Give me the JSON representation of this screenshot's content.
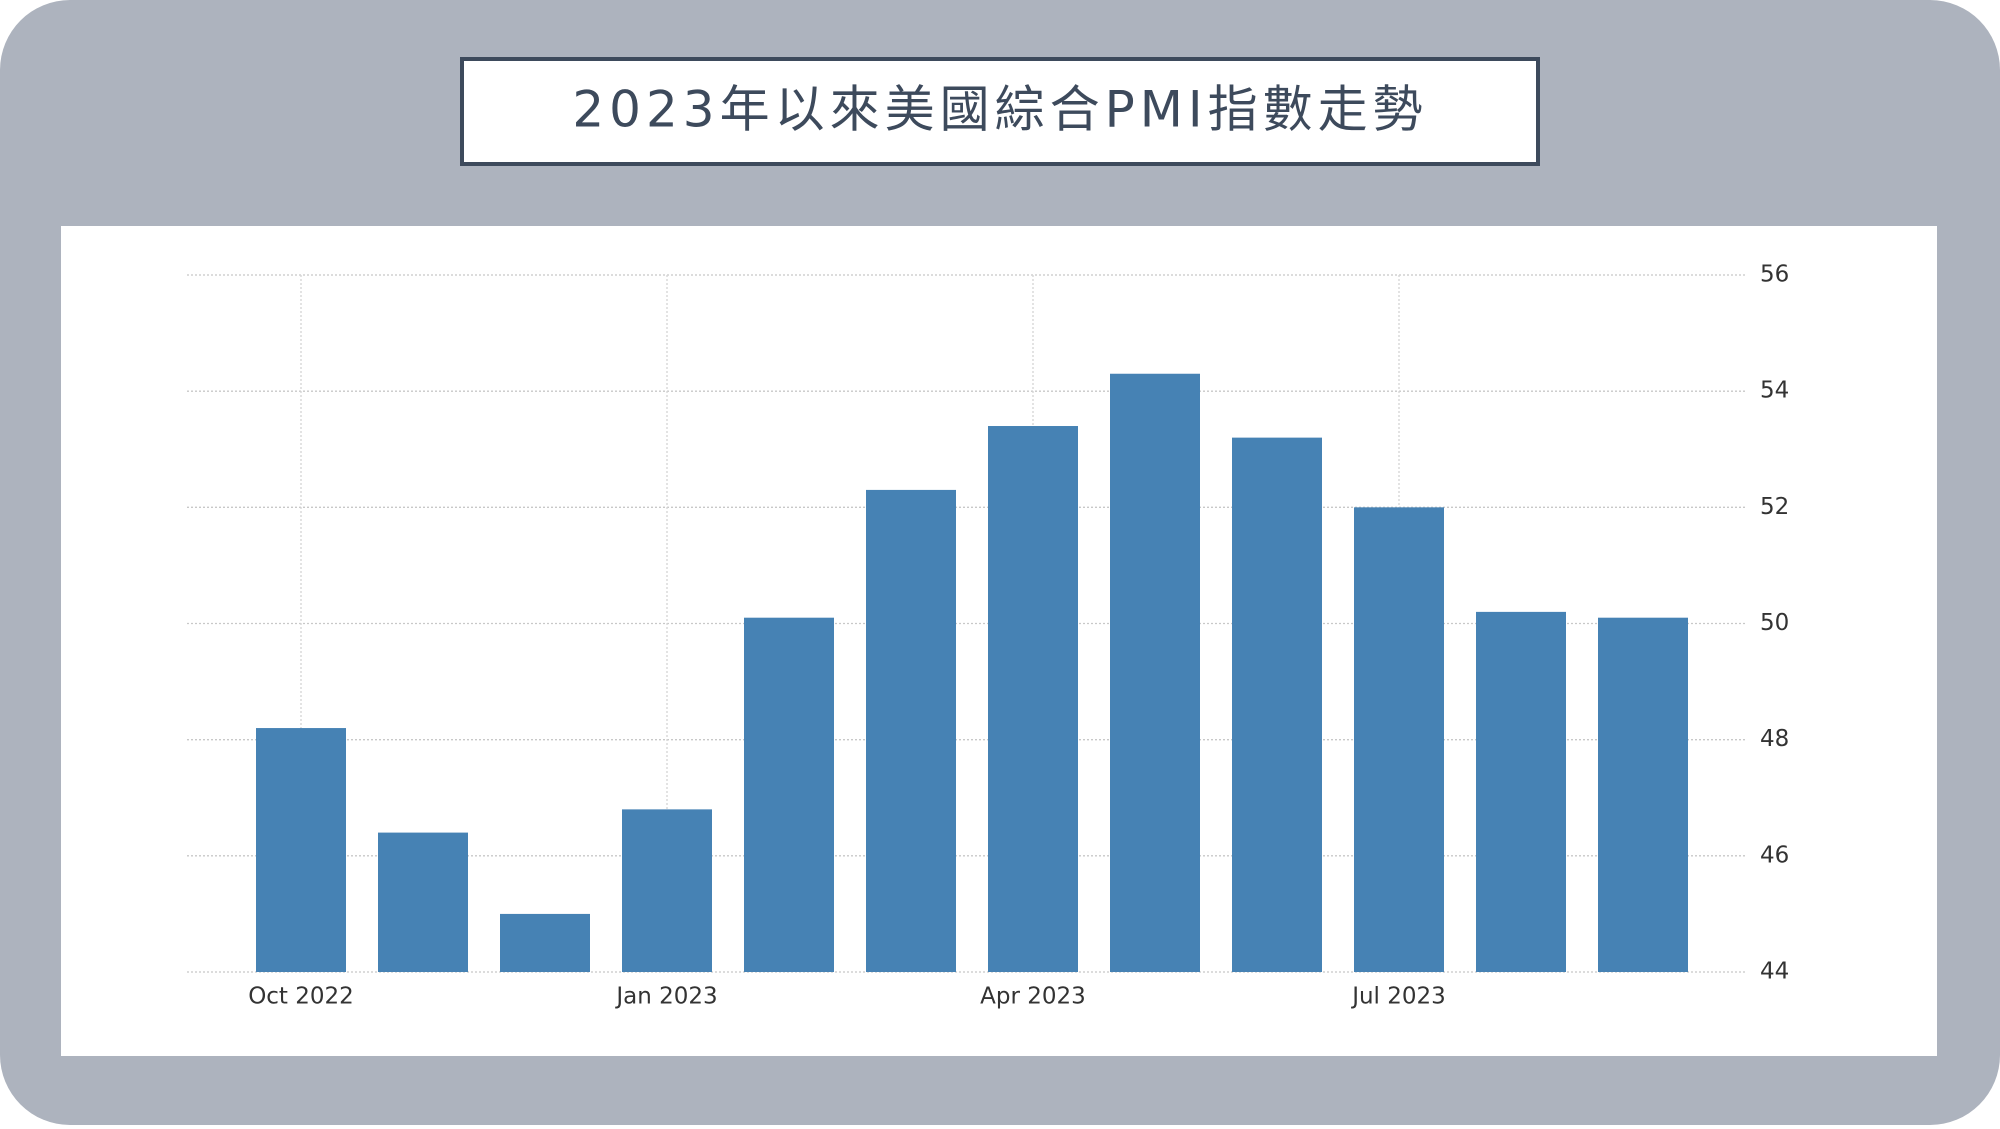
{
  "chart_data": {
    "type": "bar",
    "title": "2023年以來美國綜合PMI指數走勢",
    "categories": [
      "Oct 2022",
      null,
      null,
      "Jan 2023",
      null,
      null,
      "Apr 2023",
      null,
      null,
      "Jul 2023",
      null,
      null
    ],
    "values": [
      48.2,
      46.4,
      45.0,
      46.8,
      50.1,
      52.3,
      53.4,
      54.3,
      53.2,
      52.0,
      50.2,
      50.1
    ],
    "color": "#4682b4",
    "ylim": [
      44,
      56
    ],
    "yticks": [
      44,
      46,
      48,
      50,
      52,
      54,
      56
    ],
    "grid": true
  }
}
